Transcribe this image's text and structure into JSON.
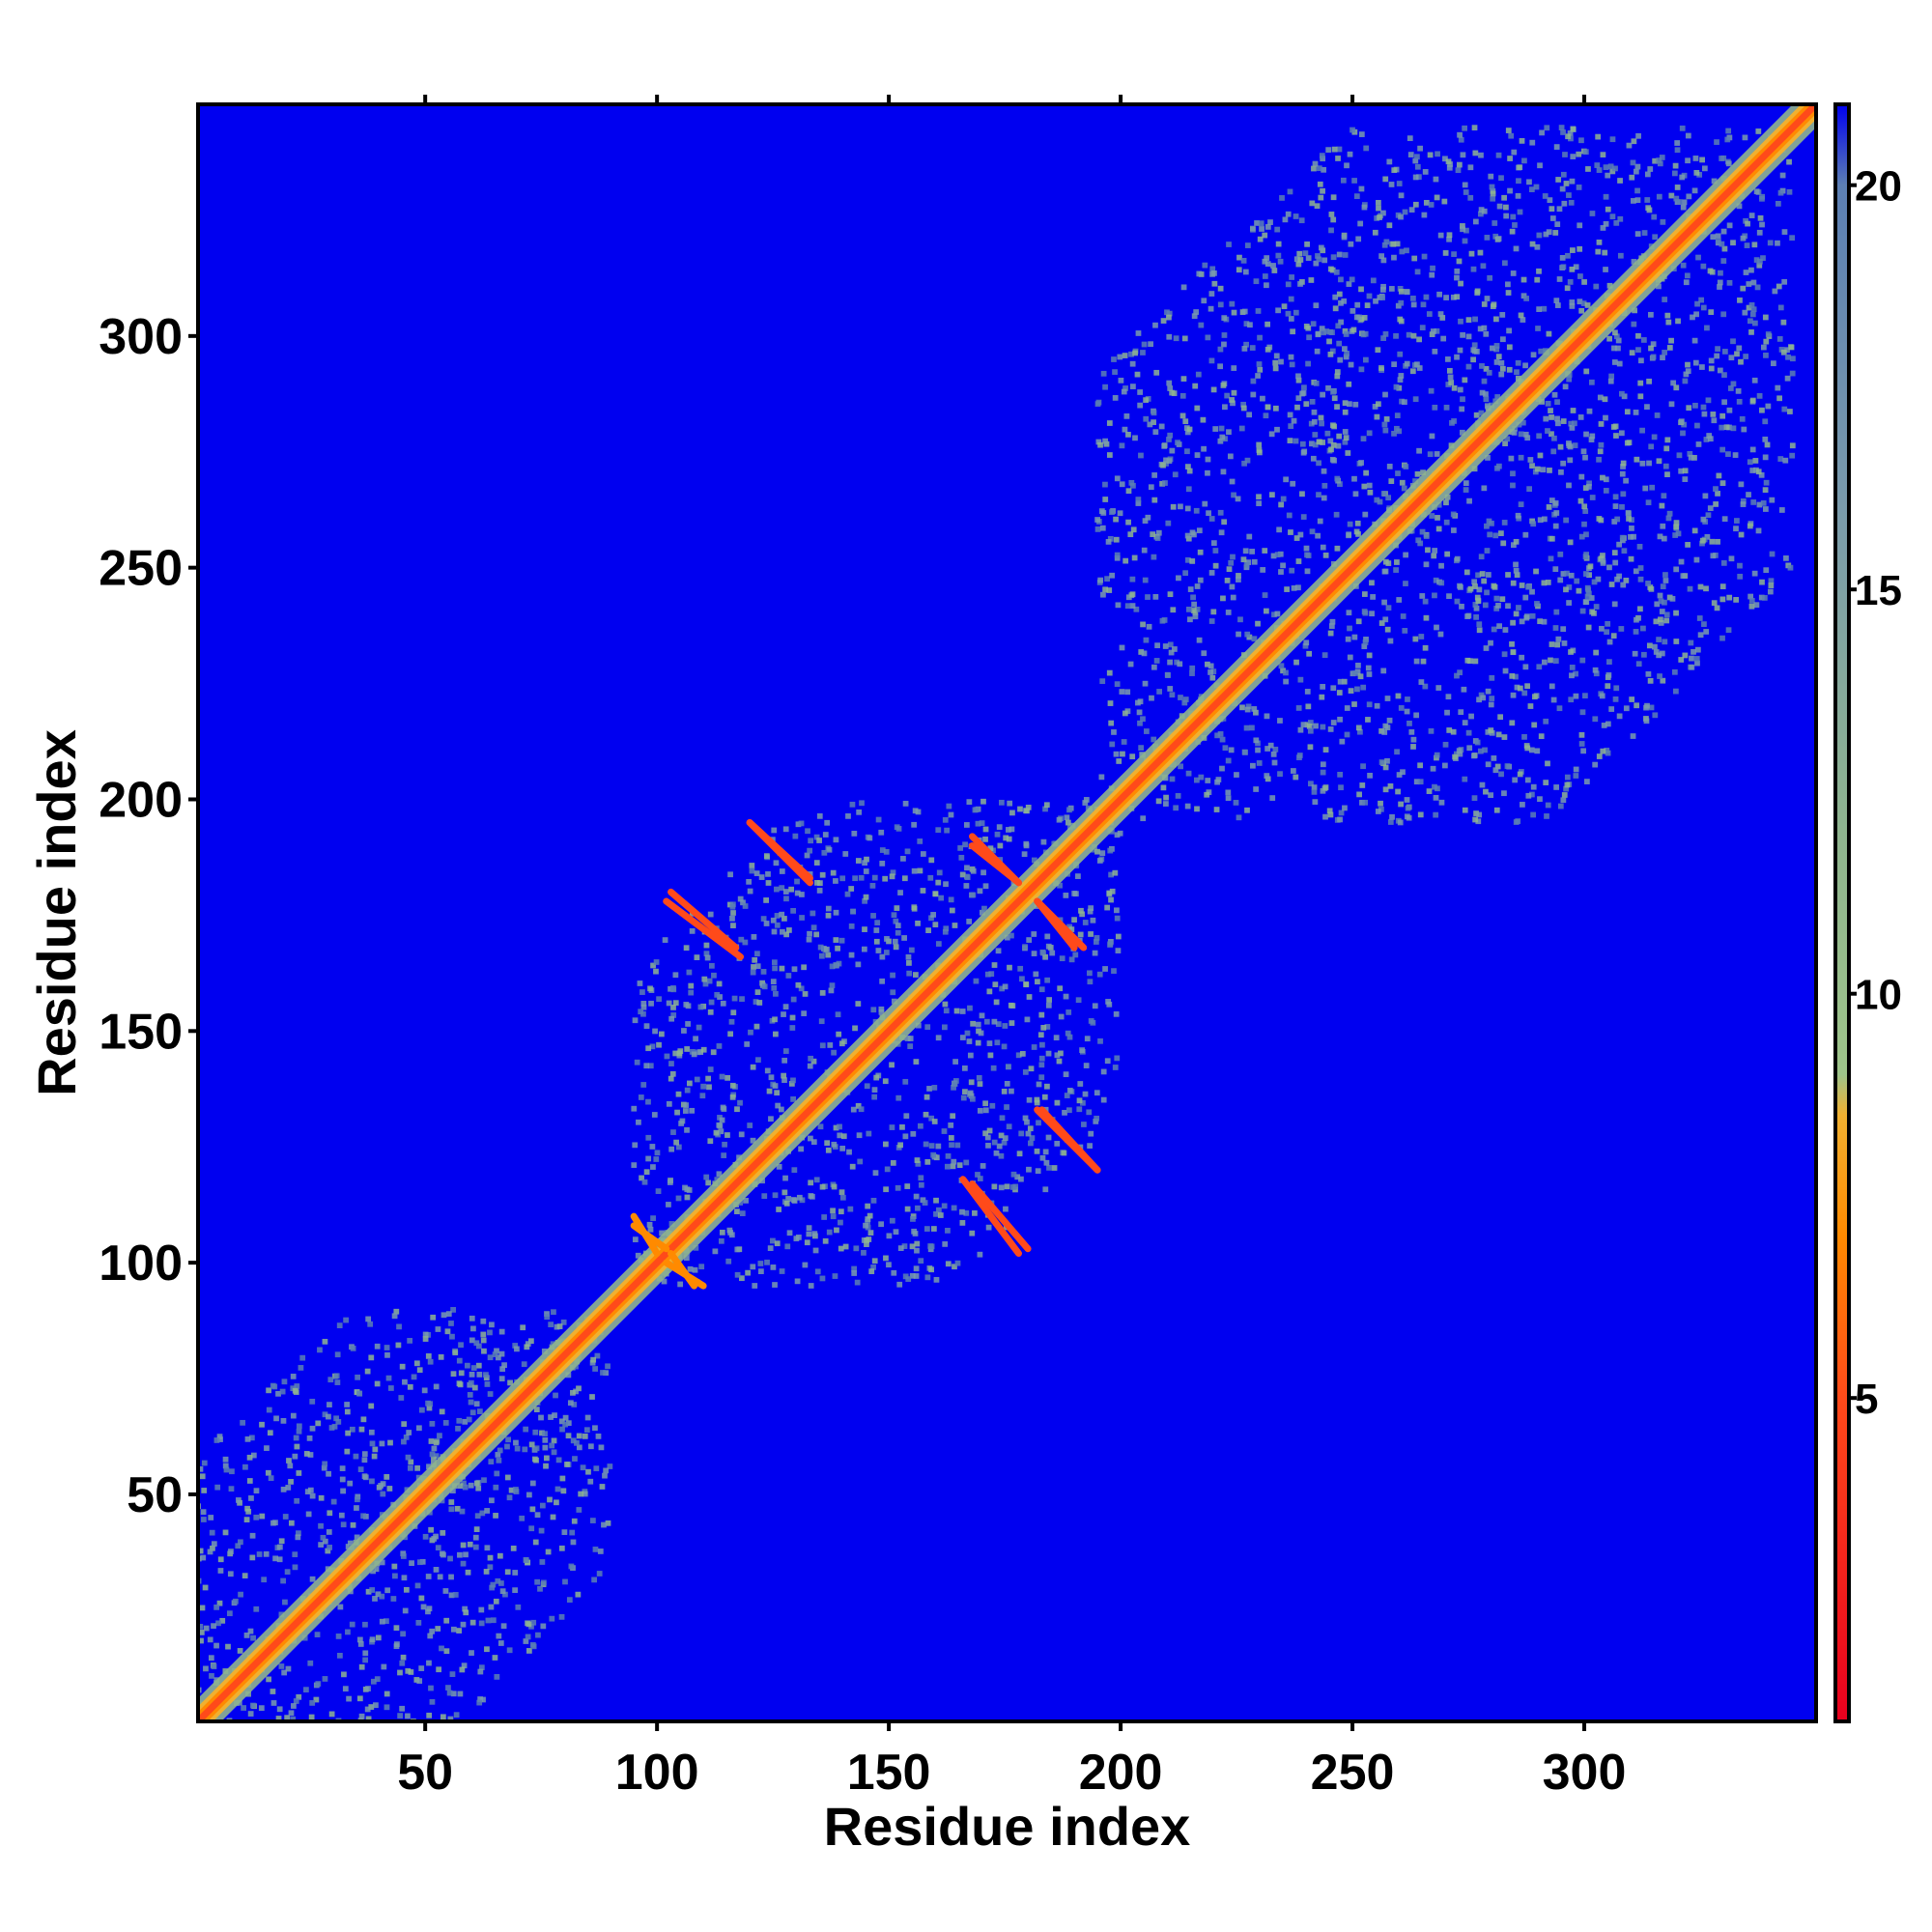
{
  "chart_data": {
    "type": "heatmap",
    "title": "",
    "xlabel": "Residue index",
    "ylabel": "Residue index",
    "xlim": [
      1,
      350
    ],
    "ylim": [
      1,
      350
    ],
    "x_ticks": [
      50,
      100,
      150,
      200,
      250,
      300
    ],
    "y_ticks": [
      50,
      100,
      150,
      200,
      250,
      300
    ],
    "colorbar": {
      "range": [
        1,
        21
      ],
      "ticks": [
        5,
        10,
        15,
        20
      ],
      "colors": [
        {
          "value": 1,
          "color": "#e8001e"
        },
        {
          "value": 5,
          "color": "#ff4a1a"
        },
        {
          "value": 7,
          "color": "#ff8a00"
        },
        {
          "value": 8.5,
          "color": "#f0b030"
        },
        {
          "value": 9,
          "color": "#9ec48a"
        },
        {
          "value": 12,
          "color": "#8fb48f"
        },
        {
          "value": 16,
          "color": "#7a9bab"
        },
        {
          "value": 20,
          "color": "#5c7fb3"
        },
        {
          "value": 21,
          "color": "#0000f0"
        }
      ]
    },
    "background_color": "#0000f0",
    "description_of_values": "pairwise residue distance map, symmetric about the diagonal",
    "domains": [
      {
        "start": 1,
        "end": 90
      },
      {
        "start": 95,
        "end": 200
      },
      {
        "start": 195,
        "end": 345
      }
    ],
    "contact_features": [
      {
        "x": [
          120,
          133
        ],
        "y": [
          195,
          182
        ],
        "value": 5
      },
      {
        "x": [
          102,
          118
        ],
        "y": [
          178,
          166
        ],
        "value": 5
      },
      {
        "x": [
          168,
          180
        ],
        "y": [
          117,
          103
        ],
        "value": 5
      },
      {
        "x": [
          183,
          195
        ],
        "y": [
          133,
          120
        ],
        "value": 5
      },
      {
        "x": [
          168,
          178
        ],
        "y": [
          190,
          182
        ],
        "value": 5
      },
      {
        "x": [
          182,
          192
        ],
        "y": [
          178,
          168
        ],
        "value": 5
      },
      {
        "x": [
          95,
          102
        ],
        "y": [
          108,
          103
        ],
        "value": 6
      },
      {
        "x": [
          102,
          110
        ],
        "y": [
          100,
          95
        ],
        "value": 6
      }
    ]
  }
}
